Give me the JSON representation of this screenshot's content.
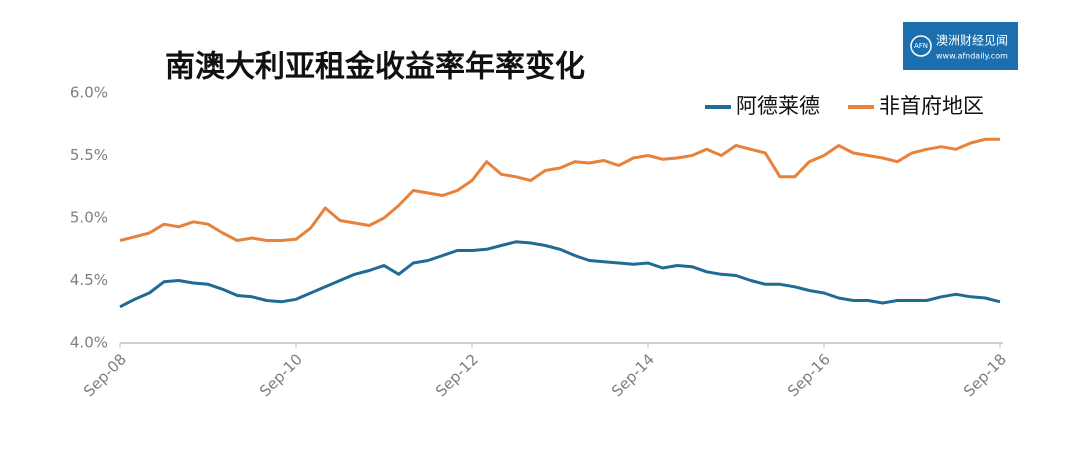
{
  "chart_data": {
    "type": "line",
    "title": "南澳大利亚租金收益率年率变化",
    "logo": {
      "name": "澳洲财经见闻",
      "url": "www.afndaily.com",
      "mark": "AFN"
    },
    "categories": [
      "Sep-08",
      null,
      null,
      null,
      null,
      null,
      null,
      null,
      null,
      null,
      null,
      null,
      "Sep-10",
      null,
      null,
      null,
      null,
      null,
      null,
      null,
      null,
      null,
      null,
      null,
      "Sep-12",
      null,
      null,
      null,
      null,
      null,
      null,
      null,
      null,
      null,
      null,
      null,
      "Sep-14",
      null,
      null,
      null,
      null,
      null,
      null,
      null,
      null,
      null,
      null,
      null,
      "Sep-16",
      null,
      null,
      null,
      null,
      null,
      null,
      null,
      null,
      null,
      null,
      null,
      "Sep-18"
    ],
    "series": [
      {
        "name": "阿德莱德",
        "color": "#1f6b94",
        "values": [
          4.29,
          4.35,
          4.4,
          4.49,
          4.5,
          4.48,
          4.47,
          4.43,
          4.38,
          4.37,
          4.34,
          4.33,
          4.35,
          4.4,
          4.45,
          4.5,
          4.55,
          4.58,
          4.62,
          4.55,
          4.64,
          4.66,
          4.7,
          4.74,
          4.74,
          4.75,
          4.78,
          4.81,
          4.8,
          4.78,
          4.75,
          4.7,
          4.66,
          4.65,
          4.64,
          4.63,
          4.64,
          4.6,
          4.62,
          4.61,
          4.57,
          4.55,
          4.54,
          4.5,
          4.47,
          4.47,
          4.45,
          4.42,
          4.4,
          4.36,
          4.34,
          4.34,
          4.32,
          4.34,
          4.34,
          4.34,
          4.37,
          4.39,
          4.37,
          4.36,
          4.33
        ]
      },
      {
        "name": "非首府地区",
        "color": "#e8813a",
        "values": [
          4.82,
          4.85,
          4.88,
          4.95,
          4.93,
          4.97,
          4.95,
          4.88,
          4.82,
          4.84,
          4.82,
          4.82,
          4.83,
          4.92,
          5.08,
          4.98,
          4.96,
          4.94,
          5.0,
          5.1,
          5.22,
          5.2,
          5.18,
          5.22,
          5.3,
          5.45,
          5.35,
          5.33,
          5.3,
          5.38,
          5.4,
          5.45,
          5.44,
          5.46,
          5.42,
          5.48,
          5.5,
          5.47,
          5.48,
          5.5,
          5.55,
          5.5,
          5.58,
          5.55,
          5.52,
          5.33,
          5.33,
          5.45,
          5.5,
          5.58,
          5.52,
          5.5,
          5.48,
          5.45,
          5.52,
          5.55,
          5.57,
          5.55,
          5.6,
          5.63,
          5.63
        ]
      }
    ],
    "ylim": [
      4.0,
      6.0
    ],
    "yticks": [
      {
        "value": 4.0,
        "label": "4.0%"
      },
      {
        "value": 4.5,
        "label": "4.5%"
      },
      {
        "value": 5.0,
        "label": "5.0%"
      },
      {
        "value": 5.5,
        "label": "5.5%"
      },
      {
        "value": 6.0,
        "label": "6.0%"
      }
    ],
    "legend": "top-right"
  }
}
